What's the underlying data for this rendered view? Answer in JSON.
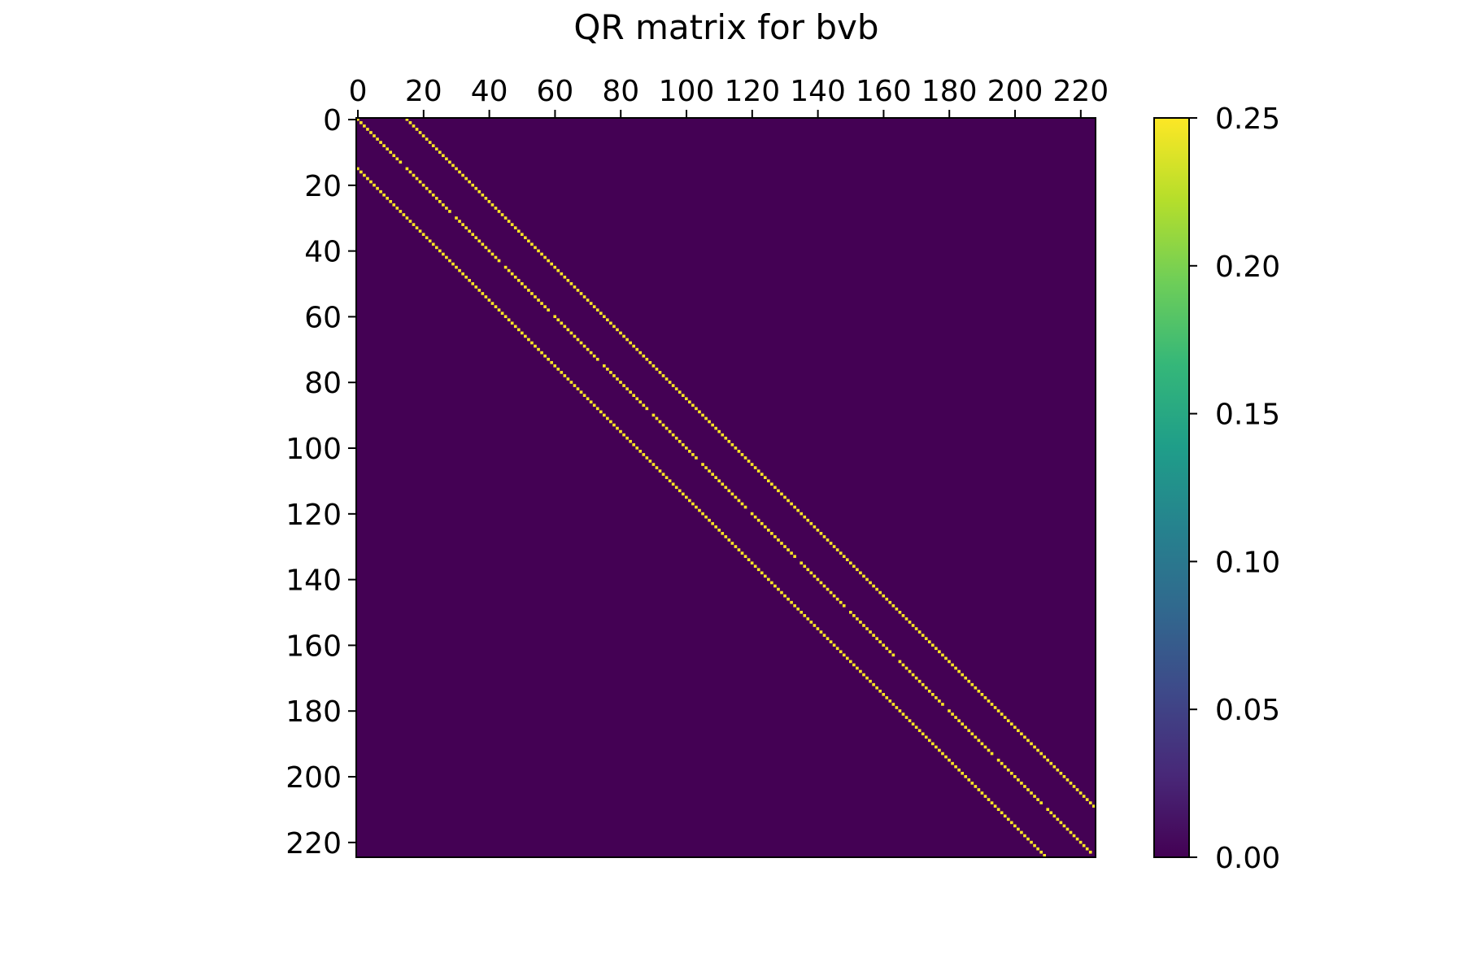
{
  "chart_data": {
    "type": "heatmap",
    "title": "QR matrix for bvb",
    "matrix_size": 225,
    "xticks": [
      0,
      20,
      40,
      60,
      80,
      100,
      120,
      140,
      160,
      180,
      200,
      220
    ],
    "yticks": [
      0,
      20,
      40,
      60,
      80,
      100,
      120,
      140,
      160,
      180,
      200,
      220
    ],
    "xtick_position": "top",
    "grid": false,
    "nonzero_structure": [
      {
        "name": "main-diagonal",
        "offset": 0,
        "value": 0.25,
        "block_size": 15,
        "pattern": "dashed"
      },
      {
        "name": "upper-diagonal",
        "offset": 15,
        "value": 0.25
      },
      {
        "name": "lower-diagonal",
        "offset": -15,
        "value": 0.25
      }
    ],
    "background_value": 0.0,
    "colorbar": {
      "colormap": "viridis",
      "range": [
        0.0,
        0.25
      ],
      "ticks": [
        "0.00",
        "0.05",
        "0.10",
        "0.15",
        "0.20",
        "0.25"
      ],
      "placement": "right"
    },
    "colors": {
      "low": "#440154",
      "high": "#fde725"
    }
  }
}
